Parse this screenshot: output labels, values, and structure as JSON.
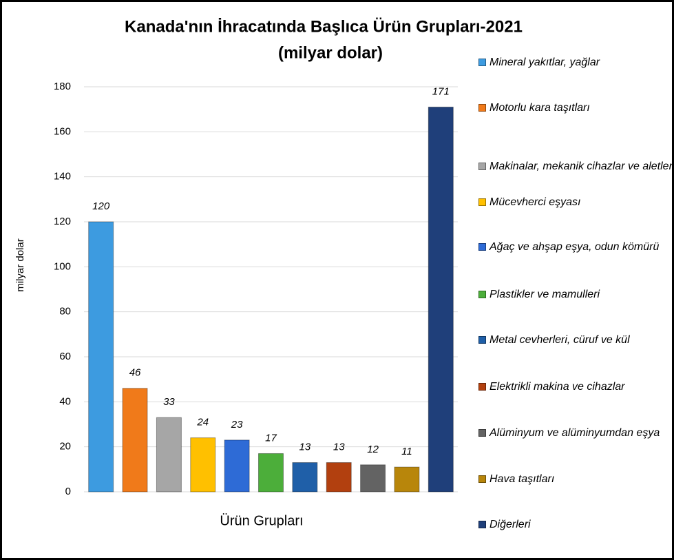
{
  "chart_data": {
    "type": "bar",
    "title": "Kanada'nın İhracatında Başlıca Ürün Grupları-2021",
    "subtitle": "(milyar dolar)",
    "y_label": "milyar dolar",
    "x_label": "Ürün Grupları",
    "categories": [
      "Mineral yakıtlar, yağlar",
      "Motorlu kara taşıtları",
      "Makinalar, mekanik cihazlar ve aletler",
      "Mücevherci eşyası",
      "Ağaç ve ahşap eşya, odun kömürü",
      "Plastikler ve mamulleri",
      "Metal cevherleri, cüruf ve kül",
      "Elektrikli makina ve cihazlar",
      "Alüminyum ve alüminyumdan eşya",
      "Hava taşıtları",
      "Diğerleri"
    ],
    "values": [
      120,
      46,
      33,
      24,
      23,
      17,
      13,
      13,
      12,
      11,
      171
    ],
    "colors": [
      "#3d9be0",
      "#f07a1a",
      "#a6a6a6",
      "#ffc000",
      "#2e6bd6",
      "#4cae3a",
      "#1f5fa8",
      "#b2400f",
      "#636363",
      "#b8860b",
      "#1f3f7a"
    ],
    "ylim": [
      0,
      180
    ],
    "yticks": [
      0,
      20,
      40,
      60,
      80,
      100,
      120,
      140,
      160,
      180
    ],
    "grid": true,
    "legend": "right"
  }
}
